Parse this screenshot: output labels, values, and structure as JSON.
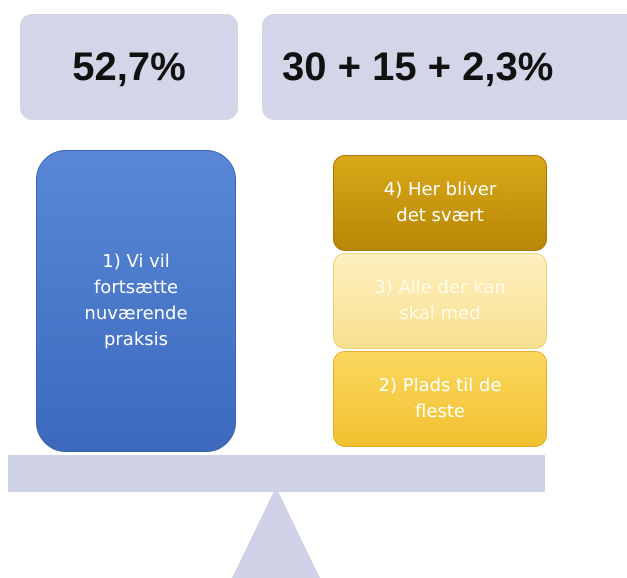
{
  "header": {
    "left": "52,7%",
    "right": "30 + 15 + 2,3%"
  },
  "left_box": {
    "lines": [
      "1) Vi vil",
      "fortsætte",
      "nuværende",
      "praksis"
    ]
  },
  "right_stack": [
    {
      "lines": [
        "4) Her bliver",
        "det svært"
      ]
    },
    {
      "lines": [
        "3) Alle der kan",
        "skal med"
      ]
    },
    {
      "lines": [
        "2) Plads til de",
        "fleste"
      ]
    }
  ]
}
